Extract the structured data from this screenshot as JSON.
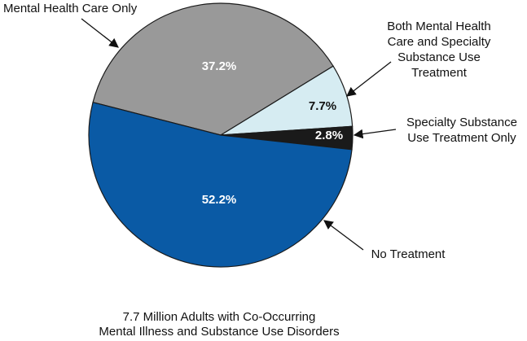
{
  "chart_data": {
    "type": "pie",
    "title": "",
    "caption": [
      "7.7 Million Adults with Co-Occurring",
      "Mental Illness and Substance Use Disorders"
    ],
    "slices": [
      {
        "key": "mental_health_only",
        "label": [
          "Mental Health Care Only"
        ],
        "value": 37.2,
        "value_label": "37.2%",
        "color": "#999999",
        "label_color": "#ffffff"
      },
      {
        "key": "both",
        "label": [
          "Both Mental Health",
          "Care and Specialty",
          "Substance Use",
          "Treatment"
        ],
        "value": 7.7,
        "value_label": "7.7%",
        "color": "#d6ecf2",
        "label_color": "#111111"
      },
      {
        "key": "specialty_only",
        "label": [
          "Specialty Substance",
          "Use Treatment Only"
        ],
        "value": 2.8,
        "value_label": "2.8%",
        "color": "#1a1a1a",
        "label_color": "#ffffff"
      },
      {
        "key": "no_treatment",
        "label": [
          "No Treatment"
        ],
        "value": 52.2,
        "value_label": "52.2%",
        "color": "#0a5aa5",
        "label_color": "#ffffff"
      }
    ]
  }
}
